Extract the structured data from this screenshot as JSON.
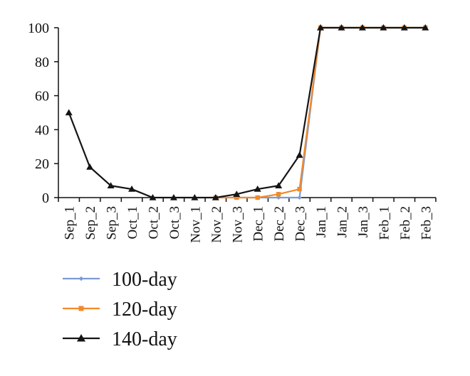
{
  "chart_data": {
    "type": "line",
    "title": "",
    "xlabel": "",
    "ylabel": "",
    "categories": [
      "Sep_1",
      "Sep_2",
      "Sep_3",
      "Oct_1",
      "Oct_2",
      "Oct_3",
      "Nov_1",
      "Nov_2",
      "Nov_3",
      "Dec_1",
      "Dec_2",
      "Dec_3",
      "Jan_1",
      "Jan_2",
      "Jan_3",
      "Feb_1",
      "Feb_2",
      "Feb_3"
    ],
    "ylim": [
      0,
      100
    ],
    "yticks": [
      0,
      20,
      40,
      60,
      80,
      100
    ],
    "grid": false,
    "legend_position": "bottom-left",
    "series": [
      {
        "name": "100-day",
        "color": "#7b9bd1",
        "marker": "diamond",
        "values": [
          null,
          null,
          null,
          null,
          null,
          null,
          null,
          null,
          0,
          0,
          0,
          0,
          100,
          100,
          100,
          100,
          100,
          100
        ]
      },
      {
        "name": "120-day",
        "color": "#f08a2c",
        "marker": "square",
        "values": [
          null,
          null,
          null,
          null,
          null,
          null,
          null,
          0,
          0,
          0,
          2,
          5,
          100,
          100,
          100,
          100,
          100,
          100
        ]
      },
      {
        "name": "140-day",
        "color": "#141414",
        "marker": "triangle",
        "values": [
          50,
          18,
          7,
          5,
          0,
          0,
          0,
          0,
          2,
          5,
          7,
          25,
          100,
          100,
          100,
          100,
          100,
          100
        ]
      }
    ]
  }
}
